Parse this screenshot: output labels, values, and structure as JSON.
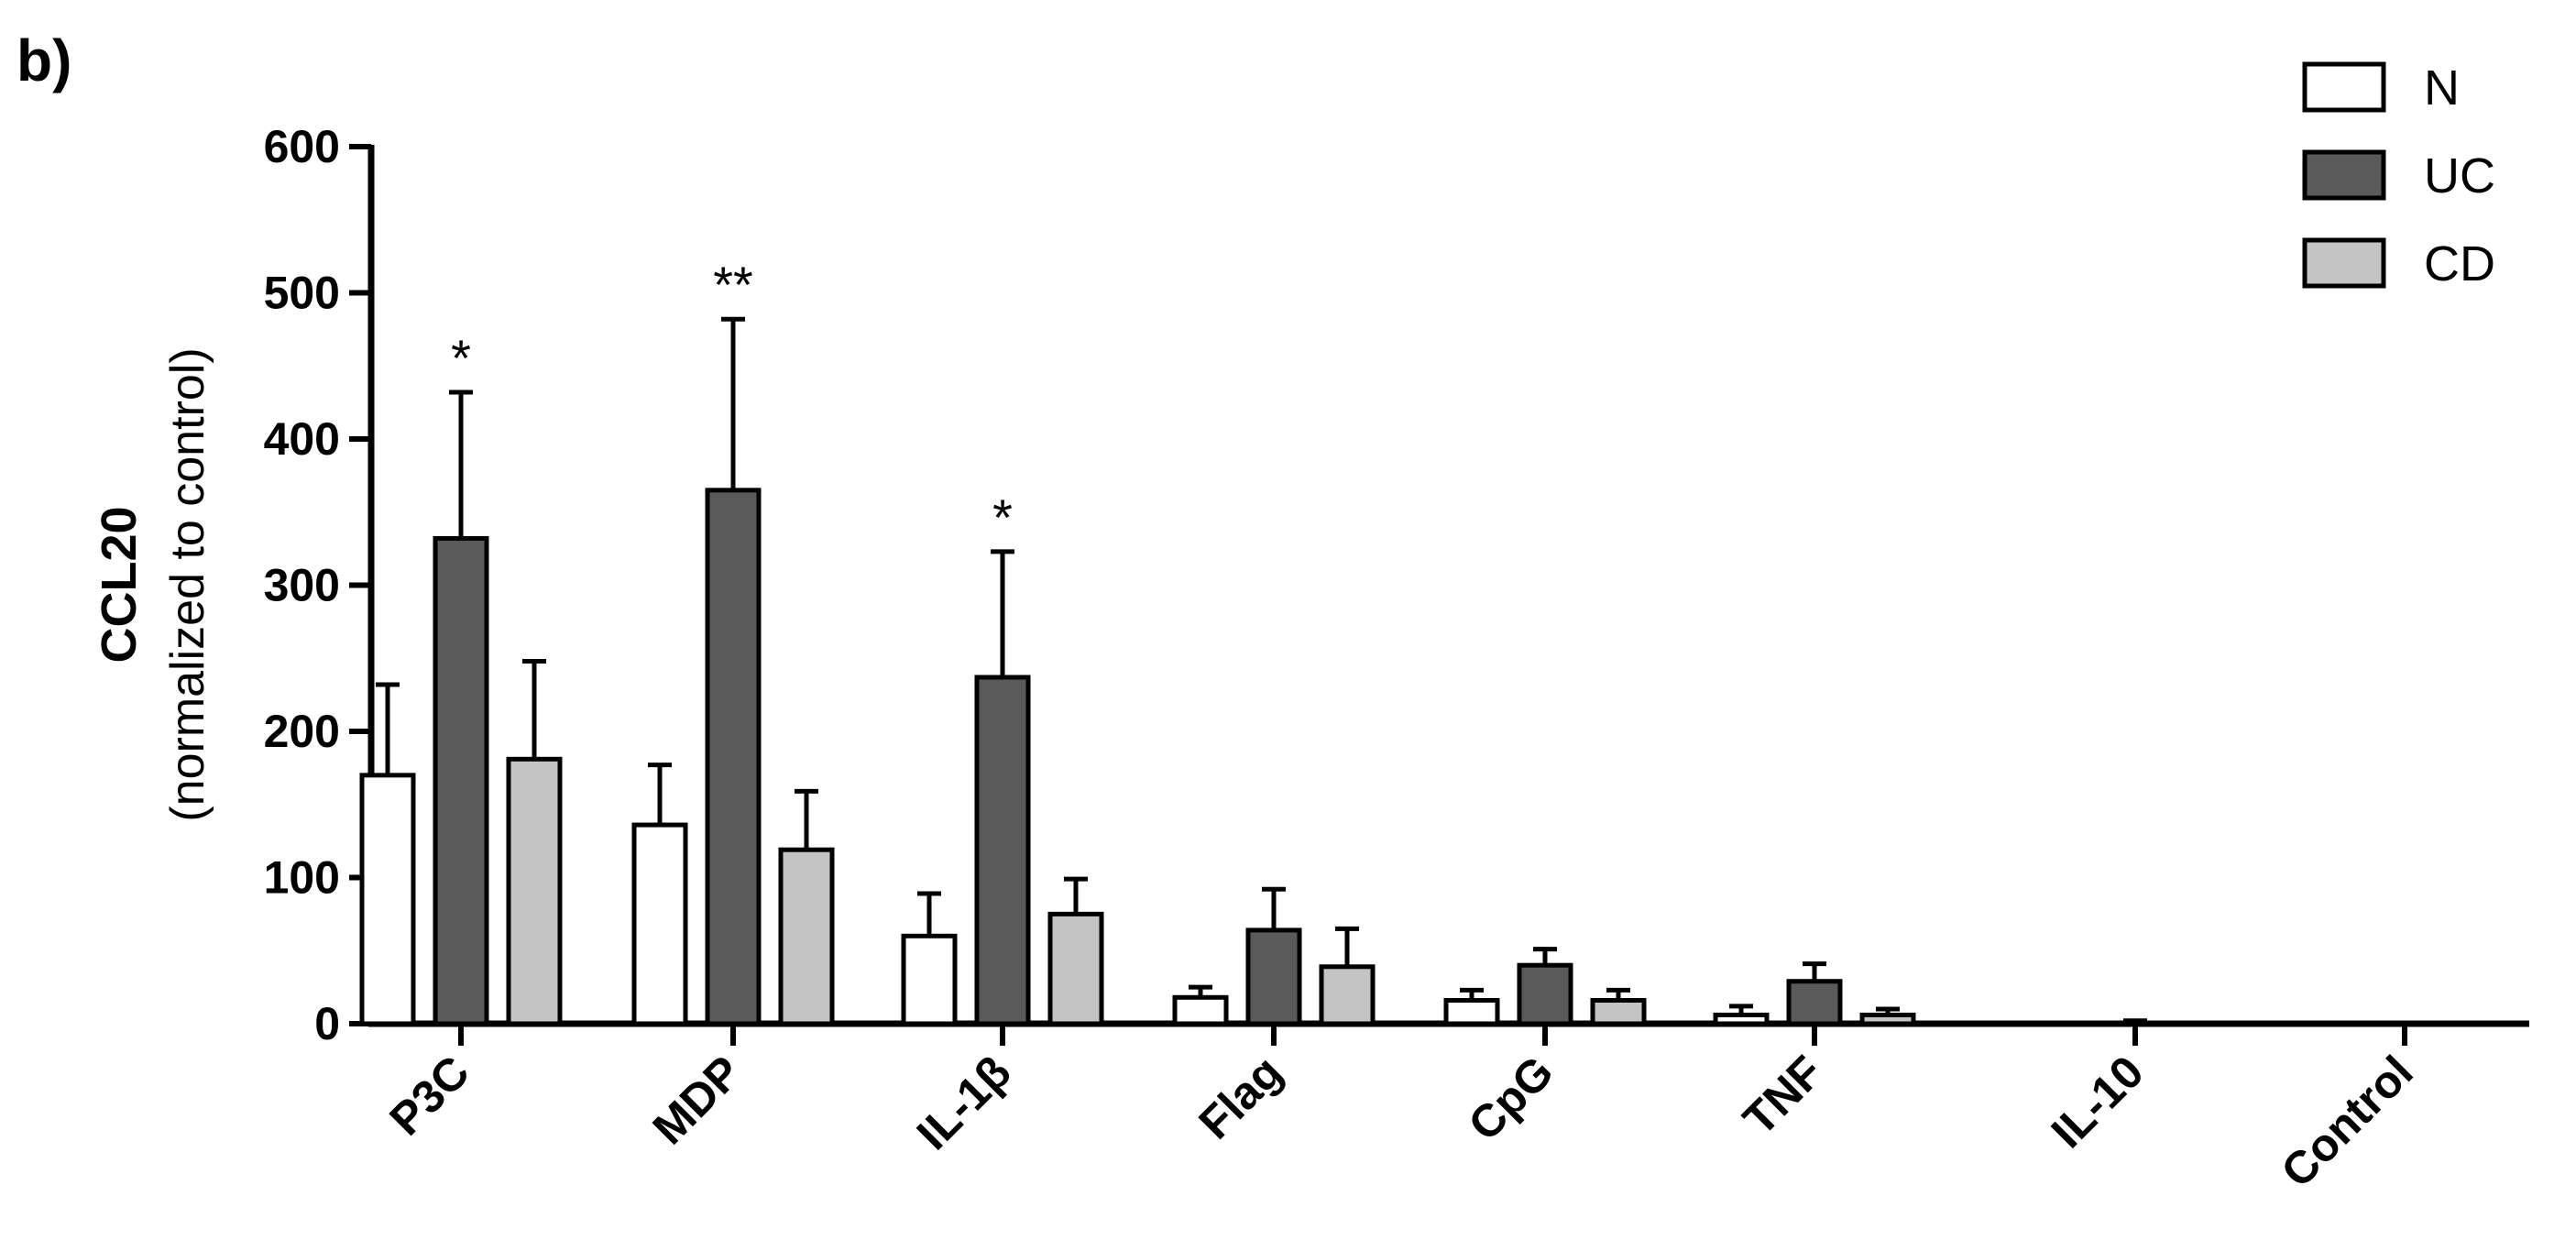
{
  "panel_label": "b)",
  "chart_data": {
    "type": "bar",
    "ylabel": "CCL20",
    "ylabel_sub": "(normalized to control)",
    "xlabel": "",
    "ylim": [
      0,
      600
    ],
    "yticks": [
      "0",
      "100",
      "200",
      "300",
      "400",
      "500",
      "600"
    ],
    "categories": [
      "P3C",
      "MDP",
      "IL-1β",
      "Flag",
      "CpG",
      "TNF",
      "IL-10",
      "Control"
    ],
    "series": [
      {
        "name": "N",
        "color": "#ffffff",
        "values": [
          170,
          136,
          60,
          18,
          16,
          6,
          0,
          0
        ],
        "errors": [
          62,
          41,
          29,
          7,
          7,
          6,
          0,
          0
        ]
      },
      {
        "name": "UC",
        "color": "#5a5a5a",
        "values": [
          332,
          365,
          237,
          64,
          40,
          29,
          0,
          0
        ],
        "errors": [
          100,
          117,
          86,
          28,
          11,
          12,
          2,
          0
        ]
      },
      {
        "name": "CD",
        "color": "#c4c4c4",
        "values": [
          181,
          119,
          75,
          39,
          16,
          6,
          0,
          0
        ],
        "errors": [
          67,
          40,
          24,
          26,
          7,
          4,
          0,
          0
        ]
      }
    ],
    "annotations": [
      {
        "category": "P3C",
        "series": "UC",
        "text": "*"
      },
      {
        "category": "MDP",
        "series": "UC",
        "text": "**"
      },
      {
        "category": "IL-1β",
        "series": "UC",
        "text": "*"
      }
    ],
    "legend_position": "top-right",
    "grid": false
  }
}
